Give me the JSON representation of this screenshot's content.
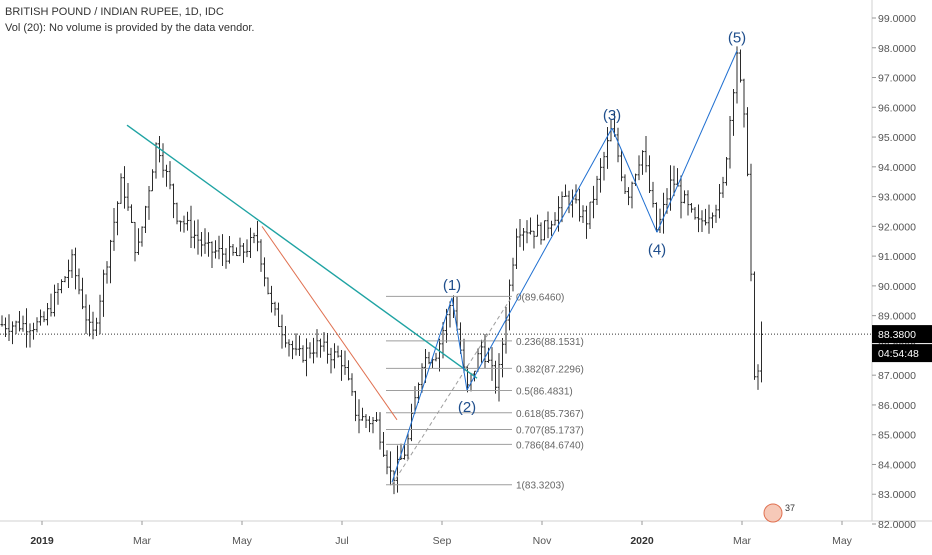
{
  "header": {
    "title": "BRITISH POUND / INDIAN RUPEE, 1D, IDC",
    "volume_note": "Vol (20): No volume is provided by the data vendor."
  },
  "colors": {
    "bars": "#2b2b2b",
    "trendline": "#1fa3a3",
    "fib": "#9e9e9e",
    "wave": "#1f6fd1",
    "wave_label": "#1f4e8c",
    "red_line": "#e07050",
    "price_tag_bg": "#000000",
    "axis_text": "#555555"
  },
  "chart_data": {
    "type": "candlestick",
    "symbol": "GBP/INR",
    "interval": "1D",
    "ylim": [
      82.0,
      99.4
    ],
    "y_ticks": [
      "99.0000",
      "98.0000",
      "97.0000",
      "96.0000",
      "95.0000",
      "94.0000",
      "93.0000",
      "92.0000",
      "91.0000",
      "90.0000",
      "89.0000",
      "88.0000",
      "87.0000",
      "86.0000",
      "85.0000",
      "84.0000",
      "83.0000",
      "82.0000"
    ],
    "x_ticks": [
      "2019",
      "Mar",
      "May",
      "Jul",
      "Sep",
      "Nov",
      "2020",
      "Mar",
      "May"
    ],
    "last_price": "88.3800",
    "countdown": "04:54:48",
    "price_path": [
      {
        "x": 0.0,
        "y": 88.7
      },
      {
        "x": 0.3,
        "y": 90.8
      },
      {
        "x": 0.5,
        "y": 88.2
      },
      {
        "x": 0.8,
        "y": 93.6
      },
      {
        "x": 0.95,
        "y": 91.0
      },
      {
        "x": 1.15,
        "y": 94.9
      },
      {
        "x": 1.35,
        "y": 92.4
      },
      {
        "x": 1.65,
        "y": 91.2
      },
      {
        "x": 1.95,
        "y": 91.0
      },
      {
        "x": 2.15,
        "y": 91.6
      },
      {
        "x": 2.3,
        "y": 89.2
      },
      {
        "x": 2.55,
        "y": 87.6
      },
      {
        "x": 2.75,
        "y": 88.0
      },
      {
        "x": 3.0,
        "y": 87.5
      },
      {
        "x": 3.15,
        "y": 85.6
      },
      {
        "x": 3.35,
        "y": 85.4
      },
      {
        "x": 3.5,
        "y": 83.5
      },
      {
        "x": 3.65,
        "y": 84.6
      },
      {
        "x": 3.8,
        "y": 87.5
      },
      {
        "x": 3.95,
        "y": 87.8
      },
      {
        "x": 4.1,
        "y": 89.6
      },
      {
        "x": 4.25,
        "y": 86.5
      },
      {
        "x": 4.4,
        "y": 88.0
      },
      {
        "x": 4.55,
        "y": 86.6
      },
      {
        "x": 4.75,
        "y": 92.0
      },
      {
        "x": 5.0,
        "y": 91.8
      },
      {
        "x": 5.25,
        "y": 93.0
      },
      {
        "x": 5.45,
        "y": 92.2
      },
      {
        "x": 5.7,
        "y": 95.3
      },
      {
        "x": 5.85,
        "y": 93.0
      },
      {
        "x": 6.0,
        "y": 94.6
      },
      {
        "x": 6.15,
        "y": 91.8
      },
      {
        "x": 6.3,
        "y": 93.6
      },
      {
        "x": 6.55,
        "y": 92.0
      },
      {
        "x": 6.8,
        "y": 93.0
      },
      {
        "x": 6.95,
        "y": 97.9
      },
      {
        "x": 7.05,
        "y": 94.5
      },
      {
        "x": 7.13,
        "y": 86.2
      },
      {
        "x": 7.2,
        "y": 88.38
      }
    ],
    "fibonacci": [
      {
        "label": "0(89.6460)",
        "value": 89.646
      },
      {
        "label": "0.236(88.1531)",
        "value": 88.1531
      },
      {
        "label": "0.382(87.2296)",
        "value": 87.2296
      },
      {
        "label": "0.5(86.4831)",
        "value": 86.4831
      },
      {
        "label": "0.618(85.7367)",
        "value": 85.7367
      },
      {
        "label": "0.707(85.1737)",
        "value": 85.1737
      },
      {
        "label": "0.786(84.6740)",
        "value": 84.674
      },
      {
        "label": "1(83.3203)",
        "value": 83.3203
      }
    ],
    "elliott_waves": [
      {
        "label": "(1)",
        "x": 4.1,
        "y": 89.6
      },
      {
        "label": "(2)",
        "x": 4.25,
        "y": 86.5
      },
      {
        "label": "(3)",
        "x": 5.7,
        "y": 95.3
      },
      {
        "label": "(4)",
        "x": 6.15,
        "y": 91.8
      },
      {
        "label": "(5)",
        "x": 6.95,
        "y": 97.9
      }
    ],
    "trendline": [
      {
        "x": 0.85,
        "y": 95.4
      },
      {
        "x": 4.35,
        "y": 86.9
      }
    ],
    "red_line": [
      {
        "x": 2.2,
        "y": 92.0
      },
      {
        "x": 3.55,
        "y": 85.5
      }
    ],
    "flag_badge": "37"
  }
}
